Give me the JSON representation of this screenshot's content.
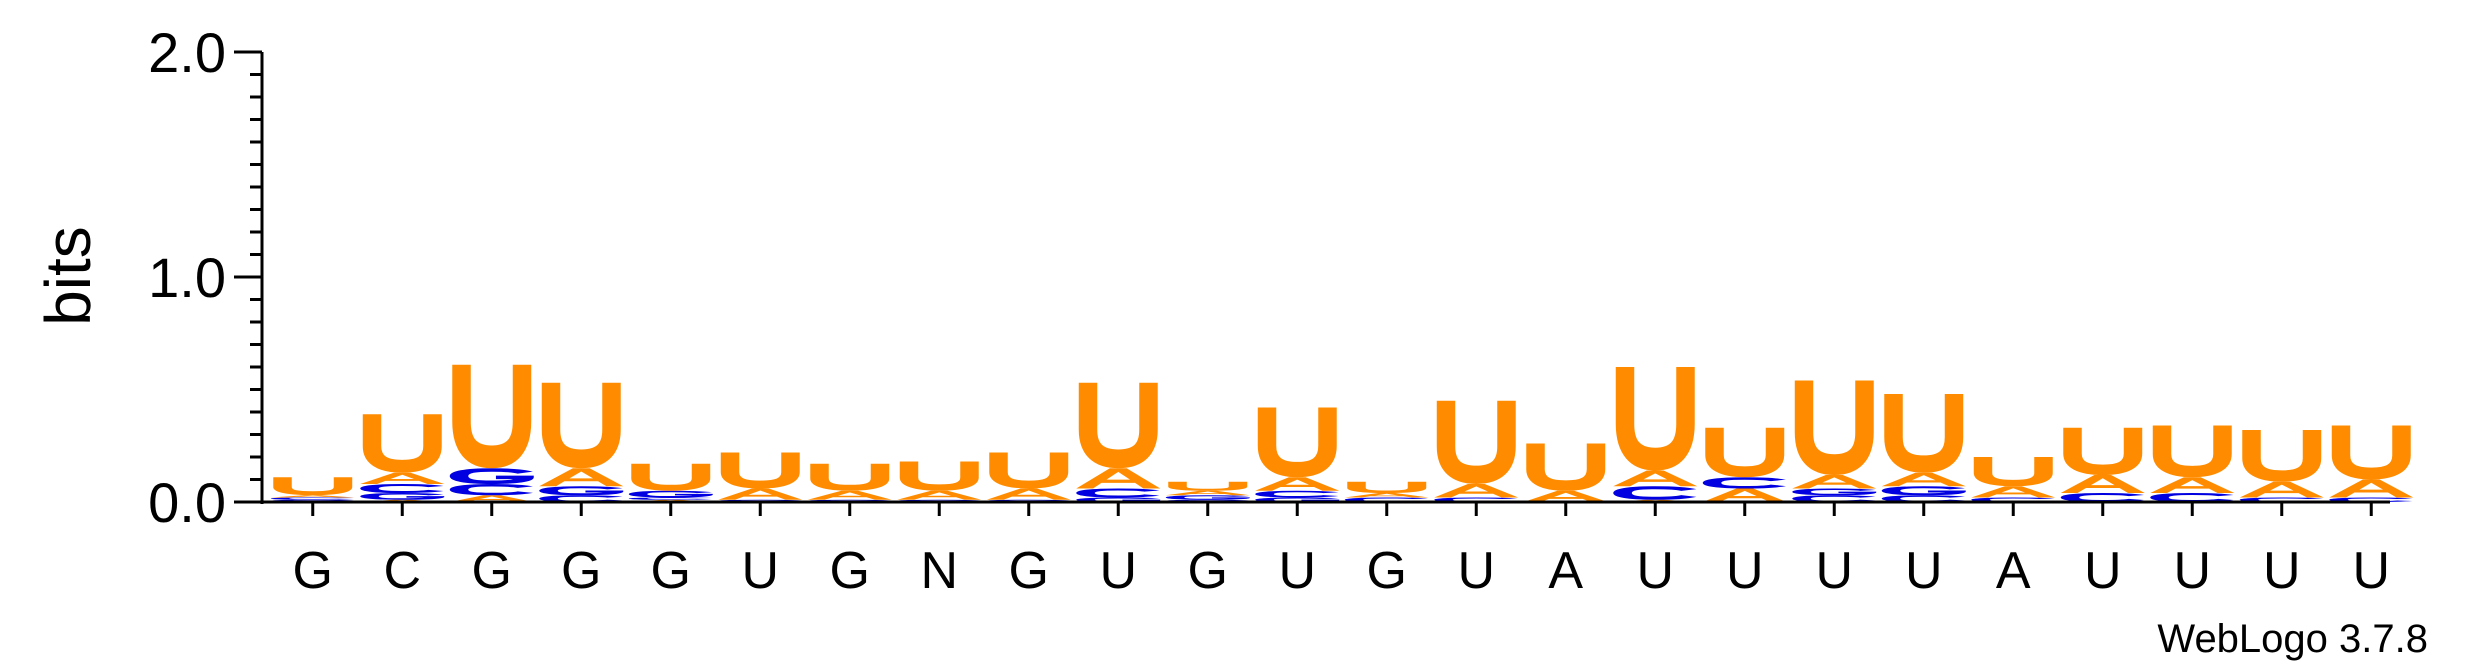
{
  "chart_data": {
    "type": "sequence-logo",
    "ylabel": "bits",
    "ylim": [
      0,
      2.0
    ],
    "yticks": [
      {
        "value": 0.0,
        "label": "0.0"
      },
      {
        "value": 1.0,
        "label": "1.0"
      },
      {
        "value": 2.0,
        "label": "2.0"
      }
    ],
    "consensus": [
      "G",
      "C",
      "G",
      "G",
      "G",
      "U",
      "G",
      "N",
      "G",
      "U",
      "G",
      "U",
      "G",
      "U",
      "A",
      "U",
      "U",
      "U",
      "U",
      "A",
      "U",
      "U",
      "U",
      "U"
    ],
    "colors": {
      "U": "#ff8c00",
      "A": "#ff8c00",
      "C": "#0000e0",
      "G": "#0000e0"
    },
    "positions": [
      {
        "stack": [
          {
            "letter": "G",
            "bits": 0.01
          },
          {
            "letter": "C",
            "bits": 0.01
          },
          {
            "letter": "A",
            "bits": 0.01
          },
          {
            "letter": "U",
            "bits": 0.08
          }
        ]
      },
      {
        "stack": [
          {
            "letter": "A",
            "bits": 0.01
          },
          {
            "letter": "G",
            "bits": 0.03
          },
          {
            "letter": "C",
            "bits": 0.04
          },
          {
            "letter": "A",
            "bits": 0.05
          },
          {
            "letter": "U",
            "bits": 0.26
          }
        ]
      },
      {
        "stack": [
          {
            "letter": "A",
            "bits": 0.03
          },
          {
            "letter": "C",
            "bits": 0.05
          },
          {
            "letter": "G",
            "bits": 0.07
          },
          {
            "letter": "U",
            "bits": 0.46
          }
        ]
      },
      {
        "stack": [
          {
            "letter": "C",
            "bits": 0.03
          },
          {
            "letter": "G",
            "bits": 0.04
          },
          {
            "letter": "A",
            "bits": 0.08
          },
          {
            "letter": "U",
            "bits": 0.38
          }
        ]
      },
      {
        "stack": [
          {
            "letter": "A",
            "bits": 0.01
          },
          {
            "letter": "C",
            "bits": 0.01
          },
          {
            "letter": "G",
            "bits": 0.03
          },
          {
            "letter": "U",
            "bits": 0.12
          }
        ]
      },
      {
        "stack": [
          {
            "letter": "C",
            "bits": 0.01
          },
          {
            "letter": "A",
            "bits": 0.05
          },
          {
            "letter": "U",
            "bits": 0.16
          }
        ]
      },
      {
        "stack": [
          {
            "letter": "C",
            "bits": 0.01
          },
          {
            "letter": "A",
            "bits": 0.04
          },
          {
            "letter": "U",
            "bits": 0.12
          }
        ]
      },
      {
        "stack": [
          {
            "letter": "C",
            "bits": 0.01
          },
          {
            "letter": "A",
            "bits": 0.04
          },
          {
            "letter": "U",
            "bits": 0.13
          }
        ]
      },
      {
        "stack": [
          {
            "letter": "C",
            "bits": 0.01
          },
          {
            "letter": "A",
            "bits": 0.05
          },
          {
            "letter": "U",
            "bits": 0.16
          }
        ]
      },
      {
        "stack": [
          {
            "letter": "G",
            "bits": 0.02
          },
          {
            "letter": "C",
            "bits": 0.04
          },
          {
            "letter": "A",
            "bits": 0.09
          },
          {
            "letter": "U",
            "bits": 0.38
          }
        ]
      },
      {
        "stack": [
          {
            "letter": "C",
            "bits": 0.01
          },
          {
            "letter": "G",
            "bits": 0.02
          },
          {
            "letter": "A",
            "bits": 0.02
          },
          {
            "letter": "U",
            "bits": 0.04
          }
        ]
      },
      {
        "stack": [
          {
            "letter": "G",
            "bits": 0.02
          },
          {
            "letter": "C",
            "bits": 0.03
          },
          {
            "letter": "A",
            "bits": 0.06
          },
          {
            "letter": "U",
            "bits": 0.31
          }
        ]
      },
      {
        "stack": [
          {
            "letter": "C",
            "bits": 0.02
          },
          {
            "letter": "A",
            "bits": 0.02
          },
          {
            "letter": "U",
            "bits": 0.05
          }
        ]
      },
      {
        "stack": [
          {
            "letter": "C",
            "bits": 0.02
          },
          {
            "letter": "A",
            "bits": 0.06
          },
          {
            "letter": "U",
            "bits": 0.37
          }
        ]
      },
      {
        "stack": [
          {
            "letter": "A",
            "bits": 0.05
          },
          {
            "letter": "U",
            "bits": 0.21
          }
        ]
      },
      {
        "stack": [
          {
            "letter": "A",
            "bits": 0.01
          },
          {
            "letter": "C",
            "bits": 0.06
          },
          {
            "letter": "A",
            "bits": 0.07
          },
          {
            "letter": "U",
            "bits": 0.46
          }
        ]
      },
      {
        "stack": [
          {
            "letter": "A",
            "bits": 0.06
          },
          {
            "letter": "C",
            "bits": 0.05
          },
          {
            "letter": "U",
            "bits": 0.22
          }
        ]
      },
      {
        "stack": [
          {
            "letter": "C",
            "bits": 0.03
          },
          {
            "letter": "G",
            "bits": 0.03
          },
          {
            "letter": "A",
            "bits": 0.06
          },
          {
            "letter": "U",
            "bits": 0.42
          }
        ]
      },
      {
        "stack": [
          {
            "letter": "C",
            "bits": 0.03
          },
          {
            "letter": "G",
            "bits": 0.04
          },
          {
            "letter": "A",
            "bits": 0.06
          },
          {
            "letter": "U",
            "bits": 0.35
          }
        ]
      },
      {
        "stack": [
          {
            "letter": "C",
            "bits": 0.02
          },
          {
            "letter": "A",
            "bits": 0.05
          },
          {
            "letter": "U",
            "bits": 0.13
          }
        ]
      },
      {
        "stack": [
          {
            "letter": "C",
            "bits": 0.04
          },
          {
            "letter": "A",
            "bits": 0.08
          },
          {
            "letter": "U",
            "bits": 0.21
          }
        ]
      },
      {
        "stack": [
          {
            "letter": "C",
            "bits": 0.04
          },
          {
            "letter": "A",
            "bits": 0.07
          },
          {
            "letter": "U",
            "bits": 0.23
          }
        ]
      },
      {
        "stack": [
          {
            "letter": "C",
            "bits": 0.02
          },
          {
            "letter": "A",
            "bits": 0.07
          },
          {
            "letter": "U",
            "bits": 0.23
          }
        ]
      },
      {
        "stack": [
          {
            "letter": "C",
            "bits": 0.02
          },
          {
            "letter": "A",
            "bits": 0.08
          },
          {
            "letter": "U",
            "bits": 0.24
          }
        ]
      }
    ]
  },
  "footer": {
    "version_label": "WebLogo 3.7.8"
  }
}
